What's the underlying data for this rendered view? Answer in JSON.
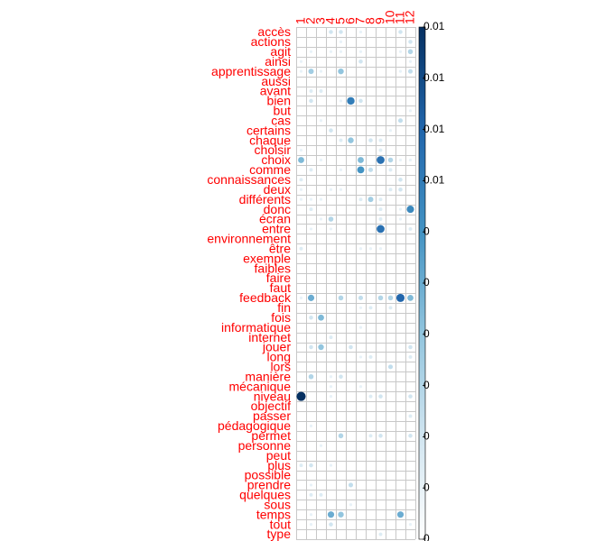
{
  "chart_data": {
    "type": "heatmap",
    "style": "corrplot-circles",
    "rows": [
      "accès",
      "actions",
      "agit",
      "ainsi",
      "apprentissage",
      "aussi",
      "avant",
      "bien",
      "but",
      "cas",
      "certains",
      "chaque",
      "choisir",
      "choix",
      "comme",
      "connaissances",
      "deux",
      "différents",
      "donc",
      "écran",
      "entre",
      "environnement",
      "être",
      "exemple",
      "faibles",
      "faire",
      "faut",
      "feedback",
      "fin",
      "fois",
      "informatique",
      "internet",
      "jouer",
      "long",
      "lors",
      "manière",
      "mécanique",
      "niveau",
      "objectif",
      "passer",
      "pédagogique",
      "permet",
      "personne",
      "peut",
      "plus",
      "possible",
      "prendre",
      "quelques",
      "sous",
      "temps",
      "tout",
      "type"
    ],
    "columns": [
      "1",
      "2",
      "3",
      "4",
      "5",
      "6",
      "7",
      "8",
      "9",
      "10",
      "11",
      "12"
    ],
    "values": [
      [
        0,
        0,
        0,
        0.2,
        0.2,
        0,
        0.1,
        0,
        0,
        0,
        0.2,
        0
      ],
      [
        0,
        0,
        0,
        0,
        0.1,
        0,
        0,
        0,
        0,
        0,
        0,
        0.2
      ],
      [
        0,
        0.1,
        0,
        0.1,
        0.1,
        0,
        0.1,
        0,
        0,
        0,
        0.1,
        0.3
      ],
      [
        0.1,
        0,
        0,
        0,
        0,
        0,
        0.2,
        0,
        0,
        0,
        0,
        0.1
      ],
      [
        0.1,
        0.35,
        0.1,
        0,
        0.4,
        0,
        0,
        0,
        0,
        0,
        0.1,
        0.25
      ],
      [
        0,
        0,
        0,
        0,
        0,
        0,
        0,
        0,
        0,
        0,
        0,
        0
      ],
      [
        0,
        0.15,
        0.15,
        0,
        0,
        0,
        0,
        0,
        0,
        0,
        0,
        0
      ],
      [
        0,
        0.2,
        0,
        0,
        0.1,
        0.7,
        0.2,
        0,
        0,
        0,
        0,
        0
      ],
      [
        0,
        0,
        0,
        0,
        0,
        0,
        0,
        0,
        0,
        0,
        0,
        0.1
      ],
      [
        0,
        0,
        0.1,
        0,
        0,
        0,
        0,
        0,
        0,
        0,
        0.25,
        0
      ],
      [
        0,
        0,
        0,
        0.2,
        0,
        0,
        0,
        0,
        0,
        0.1,
        0,
        0
      ],
      [
        0,
        0,
        0,
        0,
        0.15,
        0.4,
        0,
        0.2,
        0.15,
        0,
        0,
        0
      ],
      [
        0.1,
        0,
        0,
        0,
        0,
        0,
        0,
        0,
        0.15,
        0,
        0,
        0
      ],
      [
        0.45,
        0,
        0.1,
        0,
        0,
        0,
        0.45,
        0,
        0.75,
        0.3,
        0.1,
        0.1
      ],
      [
        0,
        0.15,
        0,
        0,
        0.1,
        0,
        0.6,
        0.25,
        0,
        0.15,
        0,
        0
      ],
      [
        0.15,
        0,
        0,
        0,
        0,
        0,
        0,
        0,
        0,
        0,
        0.2,
        0
      ],
      [
        0.1,
        0,
        0,
        0.1,
        0.1,
        0,
        0,
        0,
        0,
        0.15,
        0.2,
        0
      ],
      [
        0.1,
        0.1,
        0.1,
        0,
        0,
        0,
        0.15,
        0.35,
        0.15,
        0,
        0,
        0
      ],
      [
        0,
        0.15,
        0,
        0,
        0,
        0,
        0,
        0,
        0.15,
        0,
        0.1,
        0.65
      ],
      [
        0,
        0,
        0.1,
        0.3,
        0,
        0,
        0,
        0,
        0.15,
        0,
        0.1,
        0
      ],
      [
        0,
        0.1,
        0,
        0.1,
        0,
        0,
        0,
        0,
        0.75,
        0,
        0,
        0.15
      ],
      [
        0,
        0,
        0,
        0,
        0,
        0,
        0,
        0,
        0,
        0,
        0,
        0
      ],
      [
        0.15,
        0,
        0,
        0,
        0,
        0,
        0.1,
        0.1,
        0.1,
        0,
        0,
        0
      ],
      [
        0,
        0,
        0,
        0,
        0,
        0,
        0,
        0,
        0,
        0,
        0,
        0
      ],
      [
        0,
        0,
        0,
        0,
        0,
        0,
        0,
        0,
        0,
        0,
        0,
        0
      ],
      [
        0,
        0,
        0,
        0,
        0,
        0,
        0,
        0,
        0,
        0,
        0,
        0
      ],
      [
        0,
        0,
        0,
        0,
        0,
        0,
        0,
        0,
        0,
        0,
        0,
        0
      ],
      [
        0.1,
        0.5,
        0,
        0,
        0.3,
        0,
        0.25,
        0,
        0.3,
        0.3,
        0.8,
        0.45
      ],
      [
        0,
        0,
        0,
        0,
        0,
        0,
        0.1,
        0.15,
        0,
        0.15,
        0,
        0
      ],
      [
        0,
        0.2,
        0.45,
        0,
        0,
        0,
        0,
        0,
        0,
        0,
        0,
        0
      ],
      [
        0,
        0,
        0,
        0,
        0,
        0,
        0.1,
        0,
        0,
        0,
        0,
        0
      ],
      [
        0,
        0,
        0,
        0.15,
        0,
        0,
        0,
        0,
        0,
        0,
        0,
        0
      ],
      [
        0,
        0.2,
        0.4,
        0,
        0,
        0.2,
        0,
        0,
        0,
        0,
        0,
        0.2
      ],
      [
        0,
        0,
        0,
        0,
        0,
        0,
        0.1,
        0.15,
        0,
        0,
        0,
        0.15
      ],
      [
        0,
        0,
        0,
        0,
        0,
        0,
        0,
        0,
        0,
        0.25,
        0,
        0
      ],
      [
        0,
        0.3,
        0,
        0.1,
        0.2,
        0,
        0,
        0,
        0,
        0,
        0,
        0
      ],
      [
        0,
        0,
        0,
        0.1,
        0,
        0,
        0.1,
        0,
        0,
        0,
        0,
        0
      ],
      [
        1.0,
        0,
        0,
        0.1,
        0,
        0,
        0,
        0.15,
        0.2,
        0,
        0,
        0.2
      ],
      [
        0,
        0,
        0,
        0,
        0,
        0,
        0,
        0,
        0,
        0,
        0,
        0
      ],
      [
        0,
        0,
        0,
        0,
        0,
        0,
        0,
        0,
        0,
        0,
        0,
        0.15
      ],
      [
        0,
        0.1,
        0,
        0,
        0,
        0,
        0,
        0,
        0,
        0,
        0,
        0
      ],
      [
        0,
        0,
        0,
        0,
        0.3,
        0,
        0,
        0.15,
        0.2,
        0,
        0,
        0.2
      ],
      [
        0,
        0,
        0.1,
        0,
        0,
        0,
        0,
        0,
        0,
        0,
        0,
        0
      ],
      [
        0,
        0,
        0,
        0,
        0,
        0,
        0,
        0,
        0,
        0,
        0,
        0
      ],
      [
        0.15,
        0.2,
        0,
        0.1,
        0,
        0,
        0,
        0,
        0,
        0,
        0,
        0
      ],
      [
        0,
        0,
        0,
        0,
        0,
        0,
        0,
        0,
        0,
        0,
        0,
        0
      ],
      [
        0,
        0.1,
        0,
        0,
        0,
        0.25,
        0,
        0,
        0,
        0,
        0,
        0
      ],
      [
        0,
        0.15,
        0.15,
        0,
        0,
        0,
        0,
        0,
        0,
        0,
        0,
        0
      ],
      [
        0,
        0,
        0,
        0,
        0,
        0.1,
        0,
        0,
        0,
        0,
        0,
        0
      ],
      [
        0,
        0.1,
        0,
        0.5,
        0.4,
        0,
        0,
        0,
        0,
        0,
        0.5,
        0
      ],
      [
        0,
        0.1,
        0,
        0.2,
        0,
        0,
        0,
        0,
        0,
        0,
        0,
        0.1
      ],
      [
        0,
        0,
        0,
        0,
        0,
        0,
        0,
        0,
        0.15,
        0,
        0,
        0
      ]
    ],
    "colorbar": {
      "labels": [
        "0.01",
        "0.01",
        "0.01",
        "0.01",
        "0",
        "0",
        "0",
        "0",
        "0",
        "0",
        "0"
      ],
      "colors": [
        "#ffffff",
        "#d1e5f0",
        "#92c5de",
        "#4393c3",
        "#2166ac",
        "#053061"
      ]
    },
    "label_color": "#ff0000",
    "grid_color": "#c8c8c8"
  }
}
